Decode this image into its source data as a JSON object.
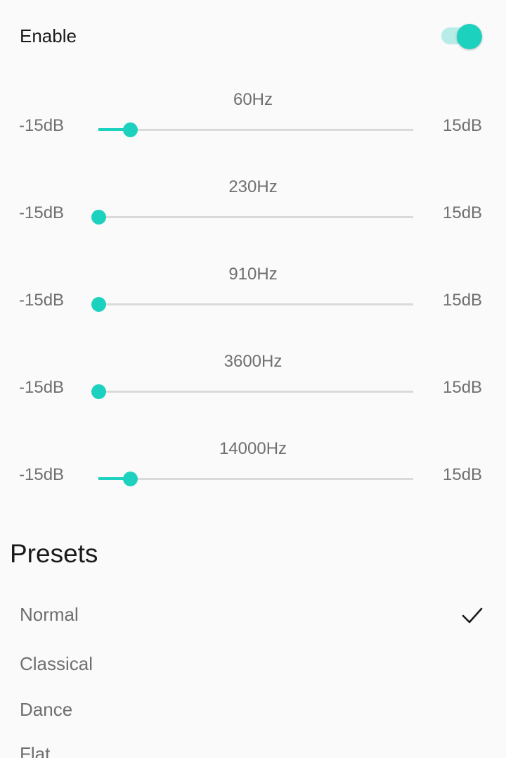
{
  "enable": {
    "label": "Enable",
    "switch_on": true
  },
  "bands": [
    {
      "freq": "60Hz",
      "min": "-15dB",
      "max": "15dB",
      "level": 0.1
    },
    {
      "freq": "230Hz",
      "min": "-15dB",
      "max": "15dB",
      "level": 0.0
    },
    {
      "freq": "910Hz",
      "min": "-15dB",
      "max": "15dB",
      "level": 0.0
    },
    {
      "freq": "3600Hz",
      "min": "-15dB",
      "max": "15dB",
      "level": 0.0
    },
    {
      "freq": "14000Hz",
      "min": "-15dB",
      "max": "15dB",
      "level": 0.1
    }
  ],
  "presets": {
    "title": "Presets",
    "items": [
      "Normal",
      "Classical",
      "Dance",
      "Flat"
    ],
    "selected": "Normal"
  },
  "colors": {
    "accent": "#1dd1bf",
    "accent_light": "#b8ece6",
    "rail": "#dadada",
    "secondary_text": "#6f6f6f"
  }
}
